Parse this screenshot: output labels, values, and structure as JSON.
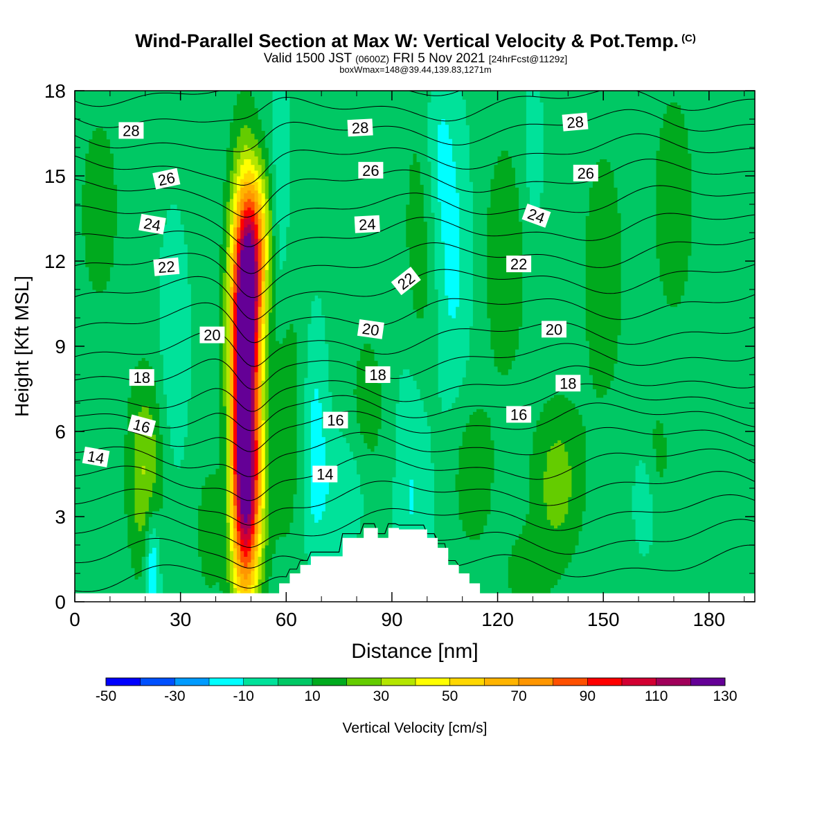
{
  "header": {
    "title": "Wind-Parallel Section at Max W: Vertical Velocity & Pot.Temp.",
    "copyright": "(C)",
    "valid_prefix": "Valid 1500 JST",
    "valid_utc": "(0600Z)",
    "valid_date": "FRI 5 Nov 2021",
    "forecast": "[24hrFcst@1129z]",
    "boxwmax": "boxWmax=148@39.44,139.83,1271m"
  },
  "colors": {
    "background_field": "#00e29a",
    "terrain": "#ffffff",
    "contour": "#000000",
    "colorbar": [
      "#0000ff",
      "#0050ff",
      "#009bff",
      "#00ffff",
      "#00e29a",
      "#00c864",
      "#00aa1e",
      "#64cc00",
      "#b4e600",
      "#ffff00",
      "#ffd700",
      "#ffb400",
      "#ff9600",
      "#ff5000",
      "#ff0000",
      "#d20032",
      "#a0005a",
      "#640096"
    ]
  },
  "chart_data": {
    "type": "heatmap",
    "title": "Wind-Parallel Section at Max W: Vertical Velocity & Pot.Temp.",
    "xlabel": "Distance [nm]",
    "ylabel": "Height [Kft MSL]",
    "xlim": [
      0,
      193
    ],
    "ylim": [
      0,
      18
    ],
    "x_ticks": [
      "0",
      "30",
      "60",
      "90",
      "120",
      "150",
      "180"
    ],
    "y_ticks": [
      "0",
      "3",
      "6",
      "9",
      "12",
      "15",
      "18"
    ],
    "colorbar": {
      "label": "Vertical Velocity [cm/s]",
      "tick_labels": [
        "-50",
        "-30",
        "-10",
        "10",
        "30",
        "50",
        "70",
        "90",
        "110",
        "130"
      ],
      "levels": [
        -50,
        -40,
        -30,
        -20,
        -10,
        0,
        10,
        20,
        30,
        40,
        50,
        60,
        70,
        80,
        90,
        100,
        110,
        120,
        130,
        140
      ]
    },
    "terrain_profile": [
      [
        58,
        0
      ],
      [
        58,
        0.65
      ],
      [
        61,
        0.65
      ],
      [
        61,
        1.0
      ],
      [
        64,
        1.0
      ],
      [
        64,
        1.3
      ],
      [
        67,
        1.3
      ],
      [
        67,
        1.6
      ],
      [
        76,
        1.6
      ],
      [
        76,
        2.25
      ],
      [
        82,
        2.25
      ],
      [
        82,
        2.6
      ],
      [
        86,
        2.6
      ],
      [
        86,
        2.25
      ],
      [
        89,
        2.25
      ],
      [
        89,
        2.6
      ],
      [
        92,
        2.6
      ],
      [
        92,
        2.55
      ],
      [
        100,
        2.55
      ],
      [
        100,
        2.25
      ],
      [
        103,
        2.25
      ],
      [
        103,
        1.9
      ],
      [
        106,
        1.9
      ],
      [
        106,
        1.3
      ],
      [
        109,
        1.3
      ],
      [
        109,
        1.0
      ],
      [
        112,
        1.0
      ],
      [
        112,
        0.65
      ],
      [
        115,
        0.65
      ],
      [
        115,
        0
      ]
    ],
    "vertical_velocity_cells": [
      {
        "x": 48,
        "y": 7.0,
        "sx": 3.0,
        "sy": 4.5,
        "w": 145
      },
      {
        "x": 50,
        "y": 11.5,
        "sx": 3.0,
        "sy": 2.0,
        "w": 60
      },
      {
        "x": 52,
        "y": 13.5,
        "sx": 3.5,
        "sy": 1.6,
        "w": 25
      },
      {
        "x": 50,
        "y": 3.5,
        "sx": 3.0,
        "sy": 2.0,
        "w": 30
      },
      {
        "x": 20,
        "y": 4.5,
        "sx": 3.5,
        "sy": 2.5,
        "w": 28
      },
      {
        "x": 7,
        "y": 13.8,
        "sx": 4.0,
        "sy": 2.5,
        "w": 14
      },
      {
        "x": 60,
        "y": 6.5,
        "sx": 4.0,
        "sy": 3.5,
        "w": 14
      },
      {
        "x": 98,
        "y": 12.0,
        "sx": 3.5,
        "sy": 4.0,
        "w": 15
      },
      {
        "x": 113,
        "y": 4.5,
        "sx": 4.0,
        "sy": 1.8,
        "w": 16
      },
      {
        "x": 137,
        "y": 4.2,
        "sx": 5.0,
        "sy": 2.0,
        "w": 22
      },
      {
        "x": 122,
        "y": 12.0,
        "sx": 5.0,
        "sy": 3.5,
        "w": 13
      },
      {
        "x": 150,
        "y": 11.5,
        "sx": 5.0,
        "sy": 4.0,
        "w": 12
      },
      {
        "x": 170,
        "y": 14.0,
        "sx": 5.0,
        "sy": 3.5,
        "w": 12
      },
      {
        "x": 83,
        "y": 6.5,
        "sx": 4.0,
        "sy": 2.5,
        "w": 12
      },
      {
        "x": 38,
        "y": 2.5,
        "sx": 3.0,
        "sy": 2.0,
        "w": 11
      },
      {
        "x": 165,
        "y": 5.0,
        "sx": 3.0,
        "sy": 1.5,
        "w": 11
      },
      {
        "x": 128,
        "y": 1.0,
        "sx": 5.0,
        "sy": 1.2,
        "w": 11
      },
      {
        "x": 28,
        "y": 9.0,
        "sx": 3.0,
        "sy": 3.0,
        "w": -12
      },
      {
        "x": 44,
        "y": 6.0,
        "sx": 2.0,
        "sy": 3.0,
        "w": -15
      },
      {
        "x": 58,
        "y": 14.0,
        "sx": 2.0,
        "sy": 3.0,
        "w": -15
      },
      {
        "x": 68,
        "y": 5.5,
        "sx": 2.5,
        "sy": 3.0,
        "w": -18
      },
      {
        "x": 77,
        "y": 4.0,
        "sx": 5.0,
        "sy": 1.4,
        "w": -14
      },
      {
        "x": 96,
        "y": 4.5,
        "sx": 3.5,
        "sy": 4.0,
        "w": -15
      },
      {
        "x": 107,
        "y": 12.0,
        "sx": 4.0,
        "sy": 3.5,
        "w": -16
      },
      {
        "x": 103,
        "y": 16.0,
        "sx": 3.0,
        "sy": 2.0,
        "w": -12
      },
      {
        "x": 22,
        "y": 1.2,
        "sx": 1.5,
        "sy": 1.5,
        "w": -30
      },
      {
        "x": 162,
        "y": 3.8,
        "sx": 2.5,
        "sy": 1.4,
        "w": -12
      },
      {
        "x": 130,
        "y": 15.8,
        "sx": 2.0,
        "sy": 1.8,
        "w": -12
      }
    ],
    "theta_levels": [
      14,
      16,
      18,
      20,
      22,
      24,
      26,
      28
    ],
    "theta_contour_labels": [
      {
        "text": "28",
        "x": 16,
        "y": 16.6,
        "rot": 0
      },
      {
        "text": "28",
        "x": 81,
        "y": 16.7,
        "rot": -3
      },
      {
        "text": "28",
        "x": 142,
        "y": 16.9,
        "rot": -5
      },
      {
        "text": "26",
        "x": 26,
        "y": 14.9,
        "rot": -12
      },
      {
        "text": "26",
        "x": 84,
        "y": 15.2,
        "rot": 0
      },
      {
        "text": "26",
        "x": 145,
        "y": 15.1,
        "rot": 0
      },
      {
        "text": "24",
        "x": 22,
        "y": 13.3,
        "rot": 10
      },
      {
        "text": "24",
        "x": 83,
        "y": 13.3,
        "rot": -3
      },
      {
        "text": "24",
        "x": 131,
        "y": 13.6,
        "rot": 20
      },
      {
        "text": "22",
        "x": 26,
        "y": 11.8,
        "rot": -5
      },
      {
        "text": "22",
        "x": 94,
        "y": 11.3,
        "rot": -38
      },
      {
        "text": "22",
        "x": 126,
        "y": 11.9,
        "rot": 0
      },
      {
        "text": "20",
        "x": 39,
        "y": 9.4,
        "rot": 0
      },
      {
        "text": "20",
        "x": 84,
        "y": 9.6,
        "rot": 8
      },
      {
        "text": "20",
        "x": 136,
        "y": 9.6,
        "rot": 0
      },
      {
        "text": "18",
        "x": 19,
        "y": 7.9,
        "rot": 0
      },
      {
        "text": "18",
        "x": 86,
        "y": 8.0,
        "rot": 0
      },
      {
        "text": "18",
        "x": 140,
        "y": 7.7,
        "rot": 0
      },
      {
        "text": "16",
        "x": 19,
        "y": 6.2,
        "rot": 15
      },
      {
        "text": "16",
        "x": 74,
        "y": 6.4,
        "rot": 0
      },
      {
        "text": "16",
        "x": 126,
        "y": 6.6,
        "rot": 0
      },
      {
        "text": "14",
        "x": 6,
        "y": 5.1,
        "rot": 10
      },
      {
        "text": "14",
        "x": 71,
        "y": 4.5,
        "rot": 0
      }
    ]
  }
}
